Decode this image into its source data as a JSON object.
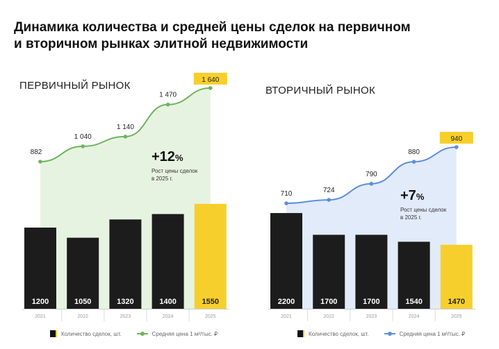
{
  "title_line1": "Динамика количества и средней цены сделок на первичном",
  "title_line2": "и вторичном рынках элитной недвижимости",
  "colors": {
    "bar": "#1c1c1c",
    "bar_highlight": "#f7cf2c",
    "primary_line": "#6db55b",
    "primary_fill": "#e3f1dc",
    "secondary_line": "#5b8fdc",
    "secondary_fill": "#dde7f8"
  },
  "chart_data": [
    {
      "type": "bar+line",
      "title": "ПЕРВИЧНЫЙ РЫНОК",
      "categories": [
        "2021",
        "2022",
        "2023",
        "2024",
        "2025"
      ],
      "series": [
        {
          "name": "Количество сделок, шт.",
          "type": "bar",
          "values": [
            1200,
            1050,
            1320,
            1400,
            1550
          ]
        },
        {
          "name": "Средняя цена 1 м²/тыс. ₽",
          "type": "line",
          "values": [
            882,
            1040,
            1140,
            1470,
            1640
          ],
          "labels": [
            "882",
            "1 040",
            "1 140",
            "1 470",
            "1 640"
          ]
        }
      ],
      "annotation": {
        "value": "+12",
        "unit": "%",
        "text1": "Рост цены сделок",
        "text2": "в 2025 г."
      }
    },
    {
      "type": "bar+line",
      "title": "ВТОРИЧНЫЙ РЫНОК",
      "categories": [
        "2021",
        "2022",
        "2023",
        "2024",
        "2025"
      ],
      "series": [
        {
          "name": "Количество сделок, шт.",
          "type": "bar",
          "values": [
            2200,
            1700,
            1700,
            1540,
            1470
          ]
        },
        {
          "name": "Средняя цена 1 м²/тыс. ₽",
          "type": "line",
          "values": [
            710,
            724,
            790,
            880,
            940
          ],
          "labels": [
            "710",
            "724",
            "790",
            "880",
            "940"
          ]
        }
      ],
      "annotation": {
        "value": "+7",
        "unit": "%",
        "text1": "Рост цены сделок",
        "text2": "в 2025 г."
      }
    }
  ]
}
